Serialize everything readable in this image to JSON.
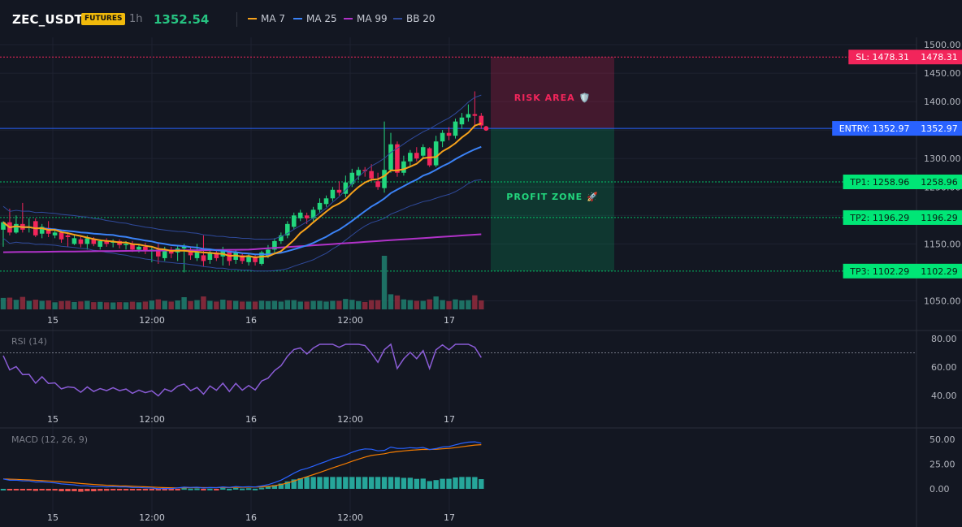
{
  "header": {
    "symbol": "ZEC_USDT",
    "badge": "FUTURES",
    "timeframe": "1h",
    "price": "1352.54",
    "price_color": "#26c281"
  },
  "legend": [
    {
      "label": "MA 7",
      "color": "#f7a21b"
    },
    {
      "label": "MA 25",
      "color": "#3b82f6"
    },
    {
      "label": "MA 99",
      "color": "#b032c8"
    },
    {
      "label": "BB 20",
      "color": "#2f4a9b"
    }
  ],
  "main_axis": {
    "ticks": [
      "1500.00",
      "1450.00",
      "1400.00",
      "1350.00",
      "1300.00",
      "1250.00",
      "1200.00",
      "1150.00",
      "1050.00"
    ],
    "tick_values": [
      1500,
      1450,
      1400,
      1350,
      1300,
      1250,
      1200,
      1150,
      1050
    ]
  },
  "time_axis": [
    "15",
    "12:00",
    "16",
    "12:00",
    "17"
  ],
  "levels": {
    "sl": {
      "label": "SL: 1478.31",
      "value_text": "1478.31",
      "value": 1478.31,
      "color": "#f2255b"
    },
    "entry": {
      "label": "ENTRY: 1352.97",
      "value_text": "1352.97",
      "value": 1352.97,
      "color": "#2962ff"
    },
    "tp": [
      {
        "label": "TP1: 1258.96",
        "value_text": "1258.96",
        "value": 1258.96
      },
      {
        "label": "TP2: 1196.29",
        "value_text": "1196.29",
        "value": 1196.29
      },
      {
        "label": "TP3: 1102.29",
        "value_text": "1102.29",
        "value": 1102.29
      }
    ],
    "tp_color": "#00e676"
  },
  "zones": {
    "risk_label": "RISK AREA 🛡️",
    "profit_label": "PROFIT ZONE 🚀"
  },
  "rsi": {
    "title": "RSI (14)",
    "ticks": [
      "80.00",
      "60.00",
      "40.00"
    ],
    "tick_values": [
      80,
      60,
      40
    ],
    "overbought": 70
  },
  "macd": {
    "title": "MACD (12, 26, 9)",
    "ticks": [
      "50.00",
      "25.00",
      "0.00"
    ],
    "tick_values": [
      50,
      25,
      0
    ]
  },
  "chart_data": {
    "type": "candlestick",
    "candles": [
      [
        1175,
        1188,
        1145,
        1190,
        1
      ],
      [
        1188,
        1170,
        1165,
        1212,
        0
      ],
      [
        1170,
        1185,
        1168,
        1200,
        1
      ],
      [
        1185,
        1175,
        1170,
        1222,
        0
      ],
      [
        1178,
        1180,
        1170,
        1195,
        1
      ],
      [
        1190,
        1165,
        1162,
        1195,
        0
      ],
      [
        1168,
        1180,
        1160,
        1185,
        1
      ],
      [
        1178,
        1168,
        1162,
        1190,
        0
      ],
      [
        1165,
        1170,
        1160,
        1175,
        1
      ],
      [
        1170,
        1158,
        1152,
        1175,
        0
      ],
      [
        1165,
        1162,
        1145,
        1170,
        0
      ],
      [
        1150,
        1160,
        1148,
        1165,
        1
      ],
      [
        1158,
        1150,
        1144,
        1165,
        0
      ],
      [
        1150,
        1160,
        1140,
        1165,
        1
      ],
      [
        1158,
        1150,
        1146,
        1162,
        0
      ],
      [
        1145,
        1155,
        1140,
        1158,
        1
      ],
      [
        1155,
        1150,
        1145,
        1160,
        0
      ],
      [
        1152,
        1155,
        1144,
        1158,
        1
      ],
      [
        1155,
        1148,
        1142,
        1158,
        0
      ],
      [
        1148,
        1150,
        1140,
        1155,
        1
      ],
      [
        1150,
        1140,
        1136,
        1155,
        0
      ],
      [
        1140,
        1145,
        1135,
        1150,
        1
      ],
      [
        1145,
        1138,
        1132,
        1152,
        0
      ],
      [
        1138,
        1140,
        1118,
        1145,
        1
      ],
      [
        1140,
        1128,
        1115,
        1150,
        0
      ],
      [
        1125,
        1140,
        1120,
        1145,
        1
      ],
      [
        1140,
        1133,
        1125,
        1145,
        0
      ],
      [
        1135,
        1142,
        1120,
        1148,
        1
      ],
      [
        1142,
        1145,
        1100,
        1150,
        1
      ],
      [
        1140,
        1130,
        1122,
        1145,
        0
      ],
      [
        1125,
        1135,
        1120,
        1150,
        1
      ],
      [
        1130,
        1120,
        1110,
        1165,
        0
      ],
      [
        1122,
        1135,
        1115,
        1140,
        1
      ],
      [
        1135,
        1125,
        1120,
        1140,
        0
      ],
      [
        1128,
        1138,
        1112,
        1145,
        1
      ],
      [
        1138,
        1120,
        1112,
        1140,
        0
      ],
      [
        1122,
        1135,
        1115,
        1140,
        1
      ],
      [
        1130,
        1120,
        1115,
        1135,
        0
      ],
      [
        1118,
        1128,
        1112,
        1132,
        1
      ],
      [
        1128,
        1118,
        1112,
        1132,
        0
      ],
      [
        1115,
        1135,
        1112,
        1138,
        1
      ],
      [
        1128,
        1140,
        1125,
        1148,
        1
      ],
      [
        1140,
        1155,
        1135,
        1160,
        1
      ],
      [
        1155,
        1165,
        1150,
        1170,
        1
      ],
      [
        1165,
        1185,
        1160,
        1190,
        1
      ],
      [
        1180,
        1200,
        1175,
        1205,
        1
      ],
      [
        1195,
        1205,
        1190,
        1210,
        1
      ],
      [
        1200,
        1195,
        1185,
        1205,
        0
      ],
      [
        1195,
        1210,
        1190,
        1215,
        1
      ],
      [
        1210,
        1222,
        1205,
        1230,
        1
      ],
      [
        1220,
        1230,
        1215,
        1235,
        1
      ],
      [
        1230,
        1245,
        1225,
        1250,
        1
      ],
      [
        1245,
        1240,
        1235,
        1260,
        0
      ],
      [
        1238,
        1258,
        1232,
        1270,
        1
      ],
      [
        1255,
        1275,
        1250,
        1282,
        1
      ],
      [
        1270,
        1280,
        1262,
        1285,
        1
      ],
      [
        1280,
        1278,
        1268,
        1285,
        0
      ],
      [
        1278,
        1265,
        1260,
        1290,
        0
      ],
      [
        1260,
        1250,
        1245,
        1275,
        0
      ],
      [
        1248,
        1280,
        1240,
        1365,
        1
      ],
      [
        1280,
        1325,
        1275,
        1345,
        1
      ],
      [
        1325,
        1275,
        1268,
        1330,
        0
      ],
      [
        1275,
        1295,
        1270,
        1305,
        1
      ],
      [
        1295,
        1310,
        1285,
        1315,
        1
      ],
      [
        1310,
        1300,
        1295,
        1320,
        0
      ],
      [
        1305,
        1320,
        1300,
        1325,
        1
      ],
      [
        1318,
        1288,
        1285,
        1320,
        0
      ],
      [
        1288,
        1330,
        1285,
        1340,
        1
      ],
      [
        1330,
        1345,
        1320,
        1350,
        1
      ],
      [
        1345,
        1340,
        1332,
        1355,
        0
      ],
      [
        1340,
        1365,
        1335,
        1370,
        1
      ],
      [
        1360,
        1372,
        1352,
        1380,
        1
      ],
      [
        1372,
        1378,
        1365,
        1395,
        1
      ],
      [
        1378,
        1375,
        1355,
        1418,
        0
      ],
      [
        1375,
        1358,
        1352,
        1380,
        0
      ]
    ],
    "ylim": [
      1035,
      1510
    ]
  }
}
